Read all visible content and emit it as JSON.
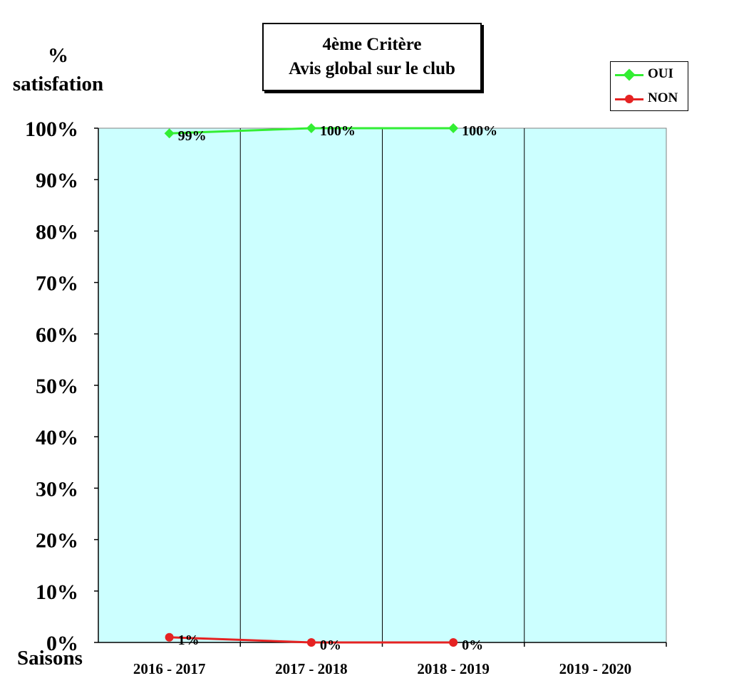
{
  "chart_data": {
    "type": "line",
    "title_line1": "4ème  Critère",
    "title_line2": "Avis global sur le club",
    "ylabel_line1": "%",
    "ylabel_line2": "satisfation",
    "xlabel": "Saisons",
    "categories": [
      "2016 - 2017",
      "2017 - 2018",
      "2018 - 2019",
      "2019 - 2020"
    ],
    "ylim": [
      0,
      100
    ],
    "yticks": [
      "0%",
      "10%",
      "20%",
      "30%",
      "40%",
      "50%",
      "60%",
      "70%",
      "80%",
      "90%",
      "100%"
    ],
    "grid": "vertical",
    "legend_position": "top-right",
    "plot_background": "#ccffff",
    "series": [
      {
        "name": "OUI",
        "color": "#33ee33",
        "marker": "diamond",
        "values": [
          99,
          100,
          100,
          null
        ],
        "labels": [
          "99%",
          "100%",
          "100%",
          null
        ]
      },
      {
        "name": "NON",
        "color": "#e52222",
        "marker": "circle",
        "values": [
          1,
          0,
          0,
          null
        ],
        "labels": [
          "1%",
          "0%",
          "0%",
          null
        ]
      }
    ]
  }
}
